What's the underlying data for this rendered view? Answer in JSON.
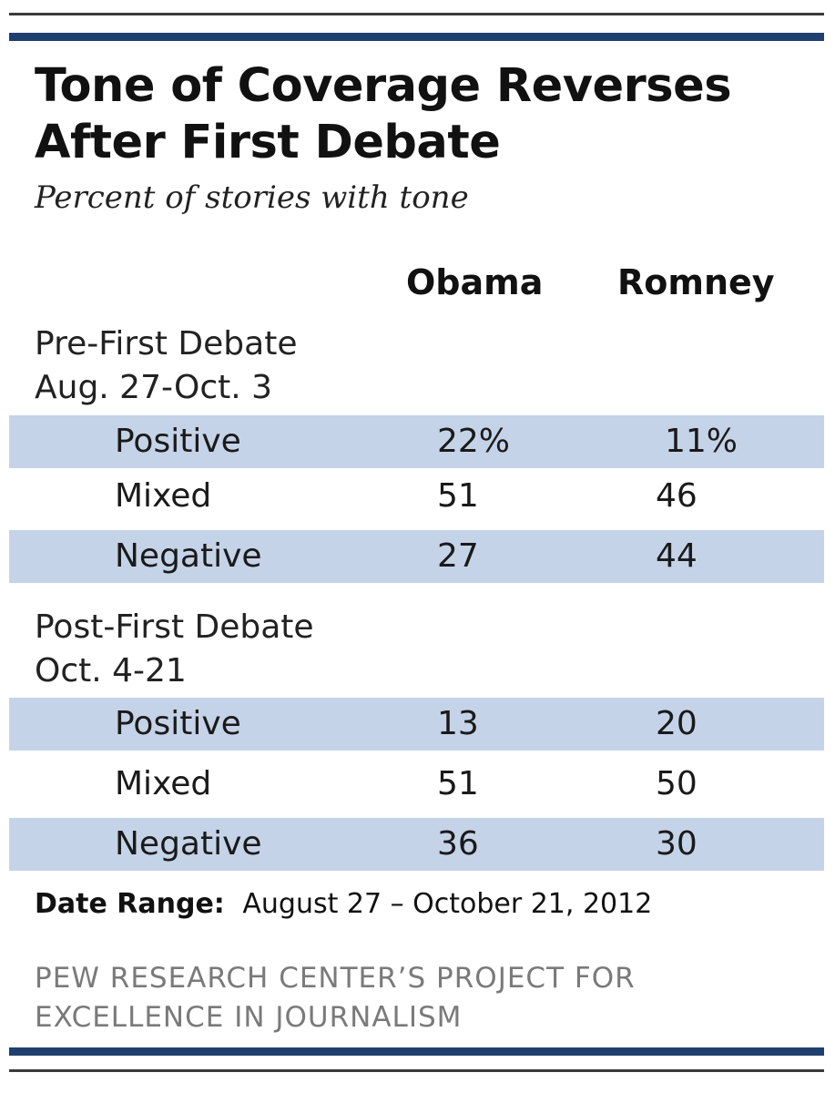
{
  "title_line1": "Tone of Coverage Reverses",
  "title_line2": "After First Debate",
  "subtitle": "Percent of stories with tone",
  "chart_data": {
    "type": "table",
    "title": "Tone of Coverage Reverses After First Debate",
    "subtitle": "Percent of stories with tone",
    "columns": [
      "Obama",
      "Romney"
    ],
    "sections": [
      {
        "label_line1": "Pre-First Debate",
        "label_line2": "Aug. 27-Oct. 3",
        "rows": [
          {
            "label": "Positive",
            "obama": "22%",
            "romney": "11%",
            "obama_value": 22,
            "romney_value": 11
          },
          {
            "label": "Mixed",
            "obama": "51",
            "romney": "46",
            "obama_value": 51,
            "romney_value": 46
          },
          {
            "label": "Negative",
            "obama": "27",
            "romney": "44",
            "obama_value": 27,
            "romney_value": 44
          }
        ]
      },
      {
        "label_line1": "Post-First Debate",
        "label_line2": "Oct. 4-21",
        "rows": [
          {
            "label": "Positive",
            "obama": "13",
            "romney": "20",
            "obama_value": 13,
            "romney_value": 20
          },
          {
            "label": "Mixed",
            "obama": "51",
            "romney": "50",
            "obama_value": 51,
            "romney_value": 50
          },
          {
            "label": "Negative",
            "obama": "36",
            "romney": "30",
            "obama_value": 36,
            "romney_value": 30
          }
        ]
      }
    ]
  },
  "date_range": {
    "key": "Date Range:",
    "value": "August 27 – October 21, 2012"
  },
  "source_line1": "PEW RESEARCH CENTER’S PROJECT FOR",
  "source_line2": "EXCELLENCE IN JOURNALISM",
  "colors": {
    "rule_dark": "#3a3a3a",
    "rule_navy": "#1f3f6e",
    "row_shade": "#c5d3e8",
    "source_gray": "#7a7a7a"
  }
}
